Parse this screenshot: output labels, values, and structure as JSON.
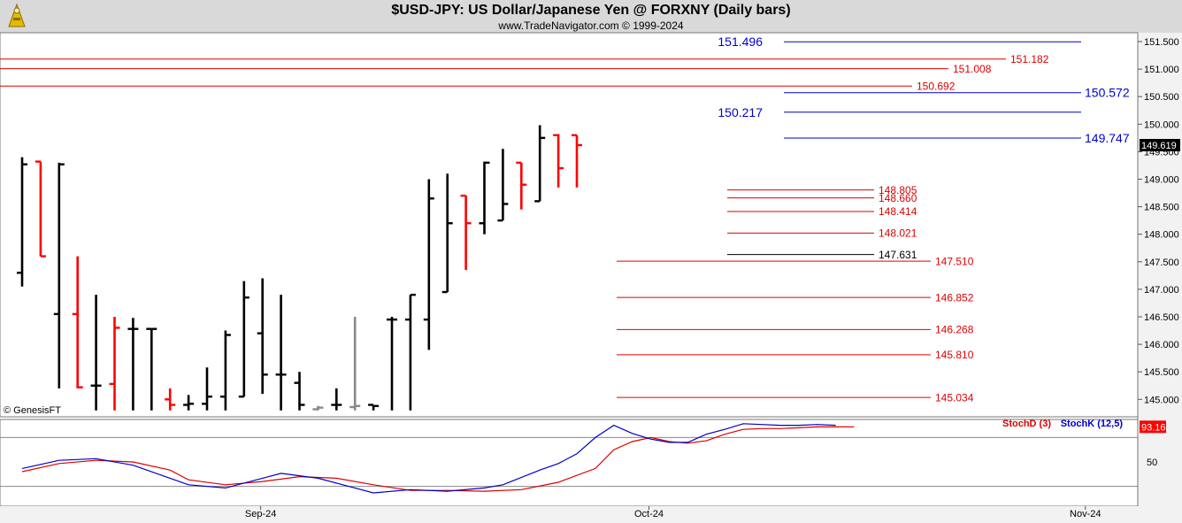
{
  "header": {
    "title": "$USD-JPY:  US Dollar/Japanese Yen @ FORXNY  (Daily bars)",
    "subtitle": "www.TradeNavigator.com © 1999-2024"
  },
  "credit": "© GenesisFT",
  "colors": {
    "up": "#000000",
    "down": "#ff0000",
    "gap": "#888888",
    "blue_level": "#0000cc",
    "red_level": "#dd0000",
    "stoch_d": "#dd0000",
    "stoch_k": "#0000cc",
    "last_price_bg": "#000000"
  },
  "chart_data": [
    {
      "type": "ohlc",
      "ylim": [
        144.8,
        151.65
      ],
      "y_ticks": [
        "151.500",
        "151.000",
        "150.500",
        "150.000",
        "149.500",
        "149.000",
        "148.500",
        "148.000",
        "147.500",
        "147.000",
        "146.500",
        "146.000",
        "145.500",
        "145.000"
      ],
      "x_ticks": [
        {
          "label": "Sep-24",
          "index": 12.9
        },
        {
          "label": "Oct-24",
          "index": 33.9
        },
        {
          "label": "Nov-24",
          "index": 57.5
        }
      ],
      "last_price": "149.619",
      "bars": [
        {
          "o": 147.3,
          "h": 149.4,
          "l": 147.05,
          "c": 149.27,
          "color": "up"
        },
        {
          "o": 149.32,
          "h": 149.32,
          "l": 147.6,
          "c": 147.6,
          "color": "down"
        },
        {
          "o": 146.55,
          "h": 149.3,
          "l": 145.2,
          "c": 149.27,
          "color": "up"
        },
        {
          "o": 146.55,
          "h": 147.6,
          "l": 145.2,
          "c": 145.22,
          "color": "down"
        },
        {
          "o": 145.25,
          "h": 146.9,
          "l": 144.8,
          "c": 145.25,
          "color": "up"
        },
        {
          "o": 145.28,
          "h": 146.5,
          "l": 144.8,
          "c": 146.3,
          "color": "down"
        },
        {
          "o": 146.28,
          "h": 146.48,
          "l": 144.8,
          "c": 146.28,
          "color": "up"
        },
        {
          "o": 146.28,
          "h": 146.28,
          "l": 144.8,
          "c": 146.28,
          "color": "up"
        },
        {
          "o": 145.0,
          "h": 145.2,
          "l": 144.8,
          "c": 144.9,
          "color": "down"
        },
        {
          "o": 144.9,
          "h": 145.08,
          "l": 144.8,
          "c": 144.92,
          "color": "up"
        },
        {
          "o": 144.92,
          "h": 145.58,
          "l": 144.8,
          "c": 145.05,
          "color": "up"
        },
        {
          "o": 145.05,
          "h": 146.25,
          "l": 144.8,
          "c": 146.17,
          "color": "up"
        },
        {
          "o": 145.05,
          "h": 147.15,
          "l": 145.05,
          "c": 146.85,
          "color": "up"
        },
        {
          "o": 146.2,
          "h": 147.2,
          "l": 145.1,
          "c": 145.45,
          "color": "up"
        },
        {
          "o": 145.45,
          "h": 146.9,
          "l": 144.8,
          "c": 145.45,
          "color": "up"
        },
        {
          "o": 145.3,
          "h": 145.5,
          "l": 144.8,
          "c": 144.9,
          "color": "up"
        },
        {
          "o": 144.82,
          "h": 144.88,
          "l": 144.8,
          "c": 144.85,
          "color": "gap"
        },
        {
          "o": 144.9,
          "h": 145.2,
          "l": 144.8,
          "c": 144.9,
          "color": "up"
        },
        {
          "o": 144.86,
          "h": 146.5,
          "l": 144.8,
          "c": 144.88,
          "color": "gap"
        },
        {
          "o": 144.9,
          "h": 144.9,
          "l": 144.8,
          "c": 144.88,
          "color": "up"
        },
        {
          "o": 146.45,
          "h": 146.5,
          "l": 144.8,
          "c": 146.45,
          "color": "up"
        },
        {
          "o": 146.45,
          "h": 146.9,
          "l": 144.8,
          "c": 146.9,
          "color": "up"
        },
        {
          "o": 146.45,
          "h": 149.0,
          "l": 145.9,
          "c": 148.65,
          "color": "up"
        },
        {
          "o": 146.95,
          "h": 149.1,
          "l": 146.95,
          "c": 148.2,
          "color": "up"
        },
        {
          "o": 148.7,
          "h": 148.7,
          "l": 147.35,
          "c": 148.2,
          "color": "down"
        },
        {
          "o": 148.2,
          "h": 149.32,
          "l": 148.0,
          "c": 149.3,
          "color": "up"
        },
        {
          "o": 148.25,
          "h": 149.55,
          "l": 148.25,
          "c": 148.55,
          "color": "up"
        },
        {
          "o": 149.3,
          "h": 149.3,
          "l": 148.45,
          "c": 148.9,
          "color": "down"
        },
        {
          "o": 148.6,
          "h": 149.98,
          "l": 148.6,
          "c": 149.75,
          "color": "up"
        },
        {
          "o": 149.8,
          "h": 149.82,
          "l": 148.85,
          "c": 149.2,
          "color": "down"
        },
        {
          "o": 149.8,
          "h": 149.8,
          "l": 148.85,
          "c": 149.62,
          "color": "down"
        }
      ],
      "levels": [
        {
          "value": 151.496,
          "label": "151.496",
          "color": "blue_level"
        },
        {
          "value": 151.182,
          "label": "151.182",
          "color": "red_level"
        },
        {
          "value": 151.008,
          "label": "151.008",
          "color": "red_level"
        },
        {
          "value": 150.692,
          "label": "150.692",
          "color": "red_level"
        },
        {
          "value": 150.572,
          "label": "150.572",
          "color": "blue_level"
        },
        {
          "value": 150.217,
          "label": "150.217",
          "color": "blue_level"
        },
        {
          "value": 149.747,
          "label": "149.747",
          "color": "blue_level"
        },
        {
          "value": 148.805,
          "label": "148.805",
          "color": "red_level"
        },
        {
          "value": 148.66,
          "label": "148.660",
          "color": "red_level"
        },
        {
          "value": 148.414,
          "label": "148.414",
          "color": "red_level"
        },
        {
          "value": 148.021,
          "label": "148.021",
          "color": "red_level"
        },
        {
          "value": 147.631,
          "label": "147.631",
          "color": "up"
        },
        {
          "value": 147.51,
          "label": "147.510",
          "color": "red_level"
        },
        {
          "value": 146.852,
          "label": "146.852",
          "color": "red_level"
        },
        {
          "value": 146.268,
          "label": "146.268",
          "color": "red_level"
        },
        {
          "value": 145.81,
          "label": "145.810",
          "color": "red_level"
        },
        {
          "value": 145.034,
          "label": "145.034",
          "color": "red_level"
        }
      ]
    },
    {
      "type": "line",
      "ylim": [
        0,
        100
      ],
      "y_ticks": [
        "50"
      ],
      "ref_lines": [
        80,
        20
      ],
      "last_value": "93.16",
      "series": [
        {
          "name": "StochD (3)",
          "color": "stoch_d",
          "values": [
            [
              0,
              38
            ],
            [
              2,
              48
            ],
            [
              4,
              52
            ],
            [
              6,
              50
            ],
            [
              8,
              40
            ],
            [
              9,
              28
            ],
            [
              11,
              22
            ],
            [
              13,
              26
            ],
            [
              15,
              32
            ],
            [
              17,
              30
            ],
            [
              19,
              22
            ],
            [
              21,
              15
            ],
            [
              23,
              15
            ],
            [
              25,
              14
            ],
            [
              27,
              16
            ],
            [
              29,
              25
            ],
            [
              31,
              42
            ],
            [
              32,
              65
            ],
            [
              33,
              75
            ],
            [
              34,
              80
            ],
            [
              35,
              75
            ],
            [
              36,
              73
            ],
            [
              37,
              76
            ],
            [
              38,
              84
            ],
            [
              39,
              90
            ],
            [
              40,
              91
            ],
            [
              41,
              91
            ],
            [
              42,
              92
            ],
            [
              43,
              93
            ],
            [
              44,
              93
            ],
            [
              45,
              93.16
            ]
          ]
        },
        {
          "name": "StochK (12,5)",
          "color": "stoch_k",
          "values": [
            [
              0,
              42
            ],
            [
              2,
              52
            ],
            [
              4,
              54
            ],
            [
              6,
              46
            ],
            [
              8,
              30
            ],
            [
              9,
              22
            ],
            [
              11,
              18
            ],
            [
              13,
              30
            ],
            [
              14,
              36
            ],
            [
              16,
              30
            ],
            [
              18,
              18
            ],
            [
              19,
              12
            ],
            [
              21,
              16
            ],
            [
              23,
              14
            ],
            [
              25,
              18
            ],
            [
              26,
              22
            ],
            [
              28,
              40
            ],
            [
              29,
              48
            ],
            [
              30,
              60
            ],
            [
              31,
              80
            ],
            [
              32,
              95
            ],
            [
              33,
              85
            ],
            [
              34,
              78
            ],
            [
              35,
              74
            ],
            [
              36,
              74
            ],
            [
              37,
              84
            ],
            [
              38,
              90
            ],
            [
              39,
              97
            ],
            [
              40,
              96
            ],
            [
              41,
              95
            ],
            [
              42,
              95
            ],
            [
              43,
              96
            ],
            [
              44,
              95
            ]
          ]
        }
      ]
    }
  ]
}
